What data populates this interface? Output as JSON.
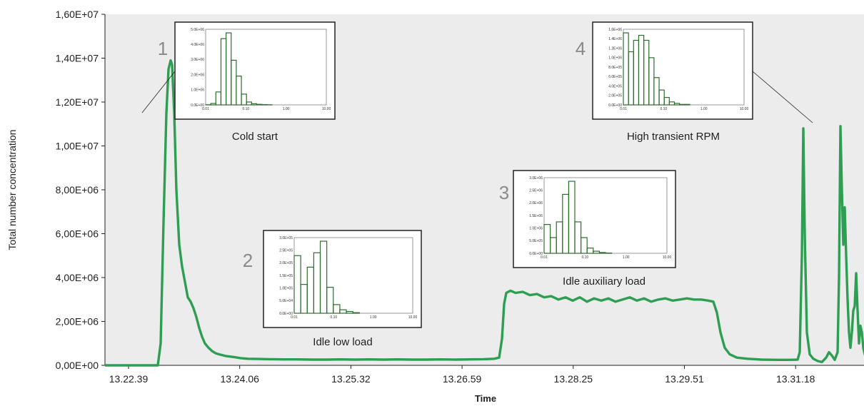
{
  "chart_data": {
    "type": "line",
    "xlabel": "Time",
    "ylabel": "Total number concentration",
    "x_ticks": [
      "13.22.39",
      "13.24.06",
      "13.25.32",
      "13.26.59",
      "13.28.25",
      "13.29.51",
      "13.31.18"
    ],
    "y_ticks": [
      "0,00E+00",
      "2,00E+06",
      "4,00E+06",
      "6,00E+06",
      "8,00E+06",
      "1,00E+07",
      "1,20E+07",
      "1,40E+07",
      "1,60E+07"
    ],
    "ylim": [
      0,
      16000000
    ],
    "grid": false,
    "series": [
      {
        "color": "#2e9e52",
        "points": [
          [
            0,
            0
          ],
          [
            70,
            0
          ],
          [
            74,
            0
          ],
          [
            78,
            1000000
          ],
          [
            82,
            6500000
          ],
          [
            86,
            11500000
          ],
          [
            89,
            13500000
          ],
          [
            92,
            13900000
          ],
          [
            94,
            13700000
          ],
          [
            97,
            11500000
          ],
          [
            100,
            8000000
          ],
          [
            104,
            5500000
          ],
          [
            108,
            4500000
          ],
          [
            112,
            3800000
          ],
          [
            116,
            3100000
          ],
          [
            120,
            2900000
          ],
          [
            124,
            2600000
          ],
          [
            128,
            2200000
          ],
          [
            132,
            1700000
          ],
          [
            136,
            1300000
          ],
          [
            140,
            1000000
          ],
          [
            145,
            800000
          ],
          [
            150,
            650000
          ],
          [
            155,
            550000
          ],
          [
            160,
            500000
          ],
          [
            170,
            420000
          ],
          [
            180,
            380000
          ],
          [
            190,
            330000
          ],
          [
            200,
            300000
          ],
          [
            215,
            290000
          ],
          [
            230,
            280000
          ],
          [
            250,
            270000
          ],
          [
            270,
            270000
          ],
          [
            290,
            260000
          ],
          [
            310,
            260000
          ],
          [
            330,
            270000
          ],
          [
            350,
            260000
          ],
          [
            370,
            270000
          ],
          [
            390,
            260000
          ],
          [
            410,
            270000
          ],
          [
            430,
            260000
          ],
          [
            450,
            260000
          ],
          [
            470,
            270000
          ],
          [
            490,
            260000
          ],
          [
            510,
            270000
          ],
          [
            530,
            280000
          ],
          [
            545,
            300000
          ],
          [
            552,
            350000
          ],
          [
            556,
            1200000
          ],
          [
            559,
            2800000
          ],
          [
            562,
            3300000
          ],
          [
            568,
            3400000
          ],
          [
            575,
            3300000
          ],
          [
            585,
            3350000
          ],
          [
            595,
            3200000
          ],
          [
            605,
            3250000
          ],
          [
            615,
            3100000
          ],
          [
            625,
            3150000
          ],
          [
            635,
            3000000
          ],
          [
            645,
            3100000
          ],
          [
            655,
            2950000
          ],
          [
            665,
            3100000
          ],
          [
            675,
            2900000
          ],
          [
            685,
            3050000
          ],
          [
            695,
            2950000
          ],
          [
            705,
            3050000
          ],
          [
            715,
            2900000
          ],
          [
            725,
            3000000
          ],
          [
            735,
            3100000
          ],
          [
            745,
            2950000
          ],
          [
            755,
            3050000
          ],
          [
            765,
            2900000
          ],
          [
            775,
            3000000
          ],
          [
            785,
            3050000
          ],
          [
            795,
            2950000
          ],
          [
            805,
            3000000
          ],
          [
            815,
            3050000
          ],
          [
            825,
            3000000
          ],
          [
            835,
            3000000
          ],
          [
            845,
            2950000
          ],
          [
            852,
            2900000
          ],
          [
            857,
            2400000
          ],
          [
            862,
            1500000
          ],
          [
            868,
            800000
          ],
          [
            875,
            500000
          ],
          [
            885,
            350000
          ],
          [
            900,
            300000
          ],
          [
            920,
            260000
          ],
          [
            940,
            250000
          ],
          [
            960,
            250000
          ],
          [
            970,
            260000
          ],
          [
            973,
            600000
          ],
          [
            976,
            5000000
          ],
          [
            978,
            10800000
          ],
          [
            980,
            6000000
          ],
          [
            983,
            1500000
          ],
          [
            987,
            500000
          ],
          [
            992,
            300000
          ],
          [
            998,
            200000
          ],
          [
            1004,
            150000
          ],
          [
            1010,
            350000
          ],
          [
            1014,
            600000
          ],
          [
            1018,
            450000
          ],
          [
            1022,
            250000
          ],
          [
            1026,
            600000
          ],
          [
            1028,
            4000000
          ],
          [
            1030,
            10900000
          ],
          [
            1032,
            8000000
          ],
          [
            1034,
            5500000
          ],
          [
            1036,
            7200000
          ],
          [
            1038,
            5000000
          ],
          [
            1040,
            3000000
          ],
          [
            1042,
            1500000
          ],
          [
            1044,
            800000
          ],
          [
            1046,
            1500000
          ],
          [
            1048,
            2500000
          ],
          [
            1050,
            2700000
          ],
          [
            1052,
            4200000
          ],
          [
            1054,
            2500000
          ],
          [
            1056,
            1000000
          ],
          [
            1058,
            1800000
          ],
          [
            1060,
            1500000
          ],
          [
            1062,
            800000
          ],
          [
            1064,
            500000
          ],
          [
            1068,
            300000
          ],
          [
            1072,
            200000
          ],
          [
            1080,
            150000
          ],
          [
            1090,
            150000
          ]
        ]
      }
    ],
    "annotations": [
      {
        "number": "1",
        "caption": "Cold start",
        "x_ticks": [
          "0.01",
          "0.10",
          "1.00",
          "10.00"
        ],
        "y_ticks": [
          "0.0E+00",
          "1.0E+06",
          "2.0E+06",
          "3.0E+06",
          "4.0E+06",
          "5.0E+06"
        ],
        "bars": [
          0.01,
          0.1,
          0.9,
          4.6,
          5.0,
          3.1,
          2.0,
          0.75,
          0.2,
          0.08,
          0.04,
          0.02,
          0.01
        ]
      },
      {
        "number": "2",
        "caption": "Idle low load",
        "x_ticks": [
          "0.01",
          "0.10",
          "1.00",
          "10.00"
        ],
        "y_ticks": [
          "0.0E+00",
          "5.0E+04",
          "1.0E+05",
          "1.5E+05",
          "2.0E+05",
          "2.5E+05",
          "3.0E+05"
        ],
        "bars": [
          1.0,
          0.5,
          0.8,
          1.05,
          1.25,
          0.45,
          0.15,
          0.06,
          0.03,
          0.01
        ]
      },
      {
        "number": "3",
        "caption": "Idle auxiliary load",
        "x_ticks": [
          "0.01",
          "0.10",
          "1.00",
          "10.00"
        ],
        "y_ticks": [
          "0.0E+00",
          "5.0E+05",
          "1.0E+06",
          "1.5E+06",
          "2.0E+06",
          "2.5E+06",
          "3.0E+06"
        ],
        "bars": [
          1.1,
          0.6,
          1.2,
          2.25,
          2.75,
          1.2,
          0.6,
          0.2,
          0.08,
          0.03,
          0.01
        ]
      },
      {
        "number": "4",
        "caption": "High transient RPM",
        "x_ticks": [
          "0.01",
          "0.10",
          "1.00",
          "10.00"
        ],
        "y_ticks": [
          "0.0E+00",
          "2.0E+05",
          "4.0E+05",
          "6.0E+05",
          "8.0E+05",
          "1.0E+06",
          "1.2E+06",
          "1.4E+06",
          "1.6E+06"
        ],
        "bars": [
          1.45,
          1.07,
          1.3,
          1.4,
          1.3,
          0.95,
          0.55,
          0.3,
          0.15,
          0.06,
          0.03,
          0.01,
          0.01
        ]
      }
    ]
  }
}
